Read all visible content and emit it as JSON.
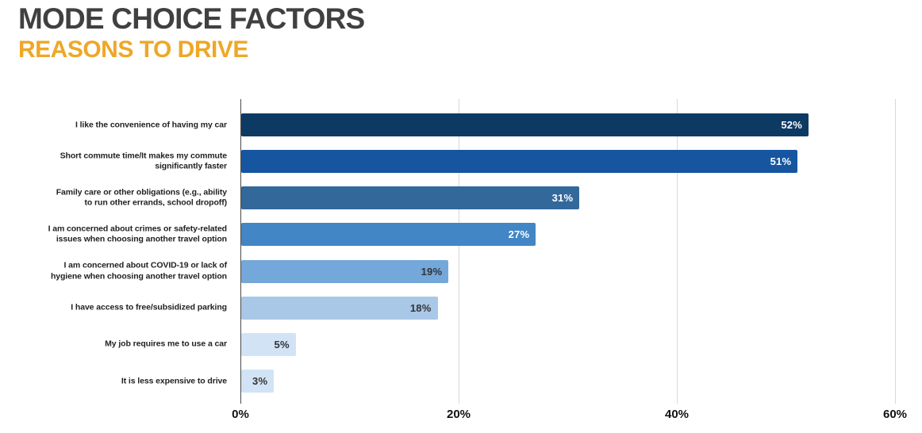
{
  "header": {
    "title": "MODE CHOICE FACTORS",
    "subtitle": "REASONS TO DRIVE"
  },
  "chart_data": {
    "type": "bar",
    "orientation": "horizontal",
    "title": "MODE CHOICE FACTORS",
    "subtitle": "REASONS TO DRIVE",
    "categories": [
      "I like the convenience of having my car",
      "Short commute time/It makes my commute\nsignificantly faster",
      "Family care or other obligations (e.g., ability\nto run other errands, school dropoff)",
      "I am concerned about crimes or safety-related\nissues when choosing another travel option",
      "I am concerned about COVID-19 or lack of\nhygiene when choosing another travel option",
      "I have access to free/subsidized parking",
      "My job requires me to use a car",
      "It is less expensive to drive"
    ],
    "values": [
      52,
      51,
      31,
      27,
      19,
      18,
      5,
      3
    ],
    "value_labels": [
      "52%",
      "51%",
      "31%",
      "27%",
      "19%",
      "18%",
      "5%",
      "3%"
    ],
    "unit": "%",
    "xlim": [
      0,
      60
    ],
    "x_tick_values": [
      0,
      20,
      40,
      60
    ],
    "x_tick_labels": [
      "0%",
      "20%",
      "40%",
      "60%"
    ],
    "grid": "vertical",
    "legend": "none",
    "bar_colors": [
      "#0D3A63",
      "#1656A1",
      "#33689B",
      "#4286C6",
      "#74A7DA",
      "#A9C7E7",
      "#D2E3F5",
      "#D2E3F5"
    ],
    "value_text_colors": [
      "#FFFFFF",
      "#FFFFFF",
      "#FFFFFF",
      "#FFFFFF",
      "#333333",
      "#333333",
      "#333333",
      "#333333"
    ]
  },
  "colors": {
    "title": "#404040",
    "subtitle": "#EEA727",
    "gridline": "#D8D8D8",
    "axis_line": "#4A4A4A",
    "category_label": "#222222",
    "tick_label": "#111111",
    "background": "#FFFFFF"
  }
}
